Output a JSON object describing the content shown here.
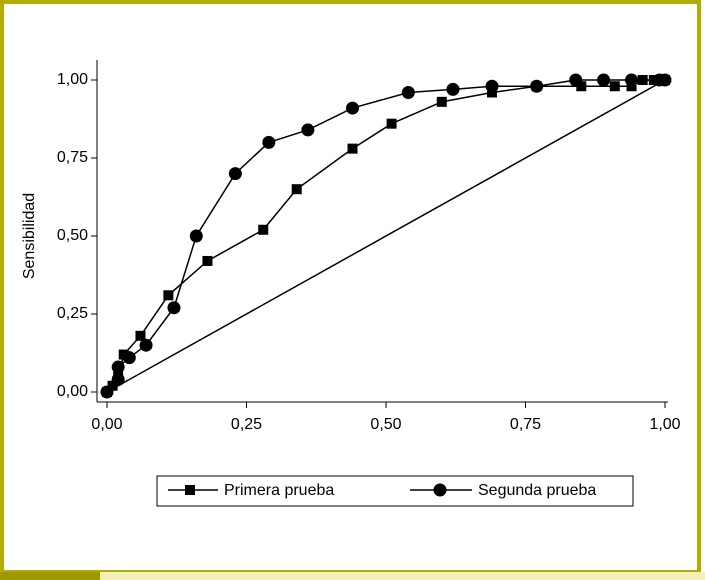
{
  "chart_data": {
    "type": "line",
    "y_label": "Sensibilidad",
    "xlim": [
      0,
      1
    ],
    "ylim": [
      0,
      1
    ],
    "xticks": [
      {
        "value": 0,
        "label": "0,00"
      },
      {
        "value": 0.25,
        "label": "0,25"
      },
      {
        "value": 0.5,
        "label": "0,50"
      },
      {
        "value": 0.75,
        "label": "0,75"
      },
      {
        "value": 1,
        "label": "1,00"
      }
    ],
    "yticks": [
      {
        "value": 0,
        "label": "0,00"
      },
      {
        "value": 0.25,
        "label": "0,25"
      },
      {
        "value": 0.5,
        "label": "0,50"
      },
      {
        "value": 0.75,
        "label": "0,75"
      },
      {
        "value": 1,
        "label": "1,00"
      }
    ],
    "diagonal": true,
    "series": [
      {
        "name": "Primera prueba",
        "color": "#000000",
        "marker": "square",
        "x": [
          0,
          0.01,
          0.02,
          0.03,
          0.06,
          0.11,
          0.18,
          0.28,
          0.34,
          0.44,
          0.51,
          0.6,
          0.69,
          0.77,
          0.85,
          0.91,
          0.94,
          0.96,
          0.98,
          1
        ],
        "values": [
          0,
          0.02,
          0.05,
          0.12,
          0.18,
          0.31,
          0.42,
          0.52,
          0.65,
          0.78,
          0.86,
          0.93,
          0.96,
          0.98,
          0.98,
          0.98,
          0.98,
          1,
          1,
          1
        ]
      },
      {
        "name": "Segunda prueba",
        "color": "#000000",
        "marker": "circle",
        "x": [
          0,
          0.02,
          0.02,
          0.04,
          0.07,
          0.12,
          0.16,
          0.23,
          0.29,
          0.36,
          0.44,
          0.54,
          0.62,
          0.69,
          0.77,
          0.84,
          0.89,
          0.94,
          0.99,
          1
        ],
        "values": [
          0,
          0.04,
          0.08,
          0.11,
          0.15,
          0.27,
          0.5,
          0.7,
          0.8,
          0.84,
          0.91,
          0.96,
          0.97,
          0.98,
          0.98,
          1,
          1,
          1,
          1,
          1
        ]
      }
    ]
  }
}
